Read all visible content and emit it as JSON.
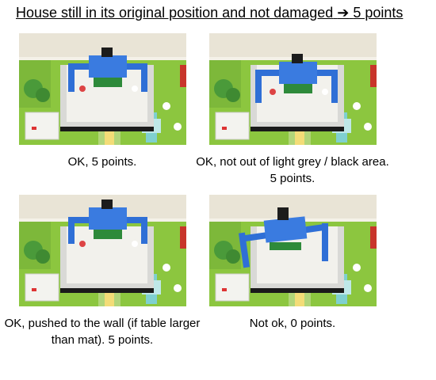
{
  "heading": {
    "text": "House still in its original position and not damaged",
    "arrow": "➔",
    "points": "5 points"
  },
  "panels": [
    {
      "caption": "OK, 5 points."
    },
    {
      "caption": "OK, not out of light grey / black area. 5 points."
    },
    {
      "caption": "OK, pushed to the wall (if table larger than mat). 5 points."
    },
    {
      "caption": "Not ok, 0 points."
    }
  ],
  "colors": {
    "mat_green": "#8cc63f",
    "house_blue": "#2f6fd6",
    "road_yellow": "#f2d23c",
    "wall_cream": "#e9e4d6",
    "zone_black": "#1a1a1a",
    "zone_grey": "#d9d9d6"
  }
}
